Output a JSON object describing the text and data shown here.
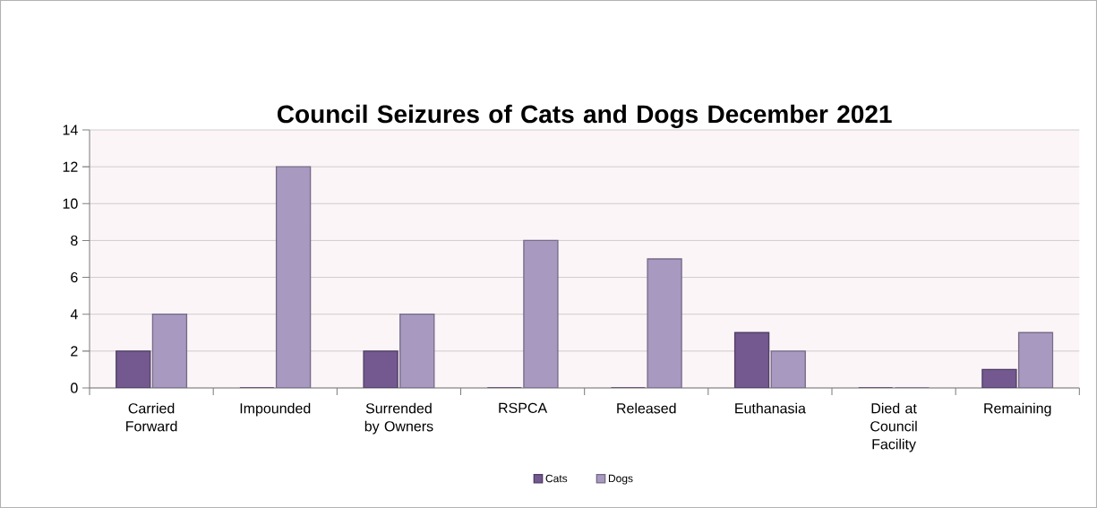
{
  "chart_data": {
    "type": "bar",
    "title": "Council Seizures of Cats and Dogs December 2021",
    "categories": [
      "Carried Forward",
      "Impounded",
      "Surrended by Owners",
      "RSPCA",
      "Released",
      "Euthanasia",
      "Died at Council Facility",
      "Remaining"
    ],
    "series": [
      {
        "name": "Cats",
        "color": "#73598f",
        "values": [
          2,
          0,
          2,
          0,
          0,
          3,
          0,
          1
        ]
      },
      {
        "name": "Dogs",
        "color": "#a899c1",
        "values": [
          4,
          12,
          4,
          8,
          7,
          2,
          0,
          3
        ]
      }
    ],
    "ylim": [
      0,
      14
    ],
    "yticks": [
      0,
      2,
      4,
      6,
      8,
      10,
      12,
      14
    ],
    "grid": "y",
    "legend": "bottom"
  }
}
